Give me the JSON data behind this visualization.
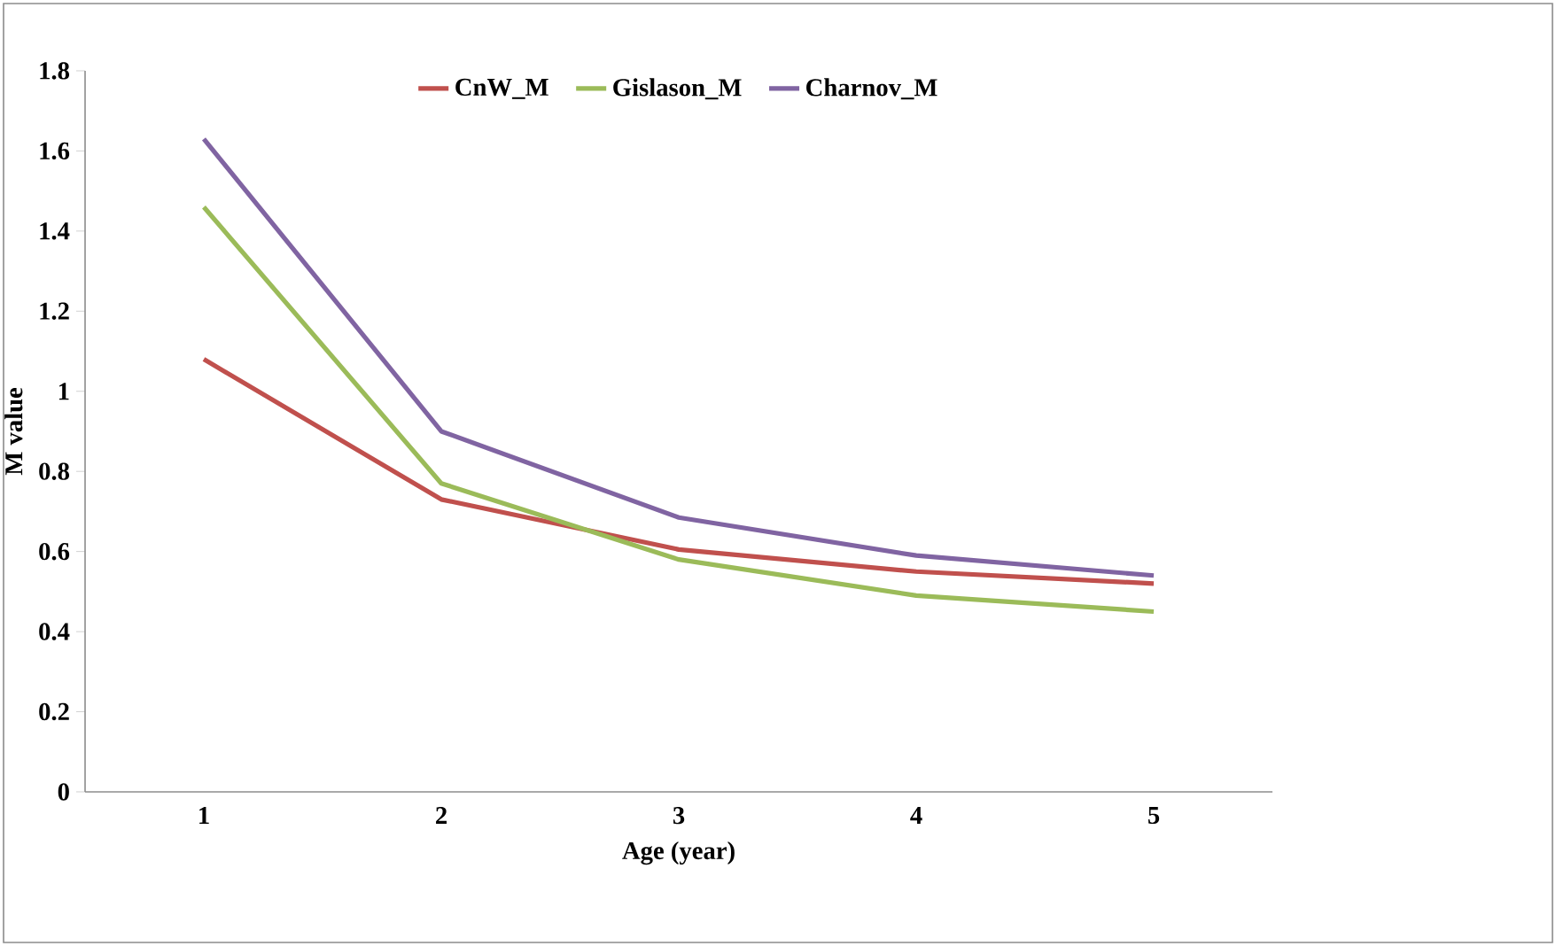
{
  "chart_data": {
    "type": "line",
    "xlabel": "Age (year)",
    "ylabel": "M value",
    "categories": [
      "1",
      "2",
      "3",
      "4",
      "5"
    ],
    "series": [
      {
        "name": "CnW_M",
        "color": "#c0504d",
        "values": [
          1.08,
          0.73,
          0.605,
          0.55,
          0.52
        ]
      },
      {
        "name": "Gislason_M",
        "color": "#9bbb59",
        "values": [
          1.46,
          0.77,
          0.58,
          0.49,
          0.45
        ]
      },
      {
        "name": "Charnov_M",
        "color": "#8064a2",
        "values": [
          1.63,
          0.9,
          0.685,
          0.59,
          0.54
        ]
      }
    ],
    "ylim": [
      0,
      1.8
    ],
    "yticks": [
      0,
      0.2,
      0.4,
      0.6,
      0.8,
      1,
      1.2,
      1.4,
      1.6,
      1.8
    ],
    "legend": "top",
    "grid": false,
    "marker": "none",
    "line_style": "solid"
  }
}
